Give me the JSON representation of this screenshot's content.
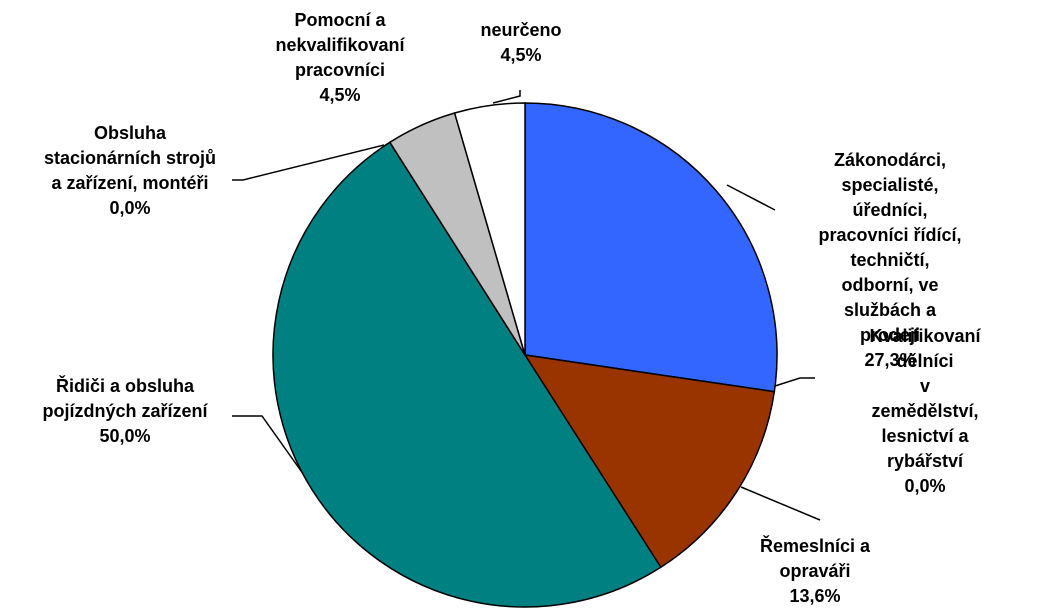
{
  "chart_data": {
    "type": "pie",
    "categories": [
      "Zákonodárci,\nspecialisté, úředníci,\npracovníci řídící,\ntechničtí, odborní, ve\nslužbách a prodeji",
      "Kvalifikovaní dělníci\nv zemědělství,\nlesnictví a rybářství",
      "Řemeslníci a\nopraváři",
      "Řidiči a obsluha\npojízdných zařízení",
      "Obsluha\nstacionárních strojů\na zařízení, montéři",
      "Pomocní a\nnekvalifikovaní\npracovníci",
      "neurčeno"
    ],
    "values": [
      27.3,
      0.0,
      13.6,
      50.0,
      0.0,
      4.5,
      4.5
    ],
    "value_labels": [
      "27,3%",
      "0,0%",
      "13,6%",
      "50,0%",
      "0,0%",
      "4,5%",
      "4,5%"
    ],
    "colors": [
      "#3366ff",
      "#993300",
      "#993300",
      "#008080",
      "#008080",
      "#c0c0c0",
      "#ffffff"
    ]
  }
}
